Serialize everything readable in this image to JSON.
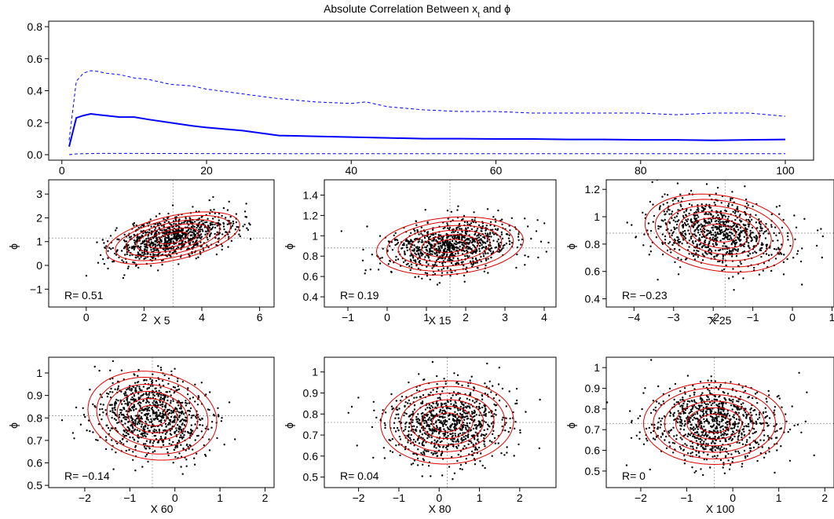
{
  "colors": {
    "mean_line": "#0000ff",
    "band_line": "#0000ff",
    "points": "#000000",
    "contours": "#e00000",
    "refline": "#9a9a9a",
    "frame": "#000000"
  },
  "chart_data": [
    {
      "id": "top",
      "type": "line",
      "title": "Absolute Correlation Between x",
      "title_sub": "t",
      "title_tail": " and ϕ",
      "xlim": [
        1,
        100
      ],
      "ylim": [
        0,
        0.8
      ],
      "xticks": [
        0,
        20,
        40,
        60,
        80,
        100
      ],
      "yticks": [
        0.0,
        0.2,
        0.4,
        0.6,
        0.8
      ],
      "ytick_labels": [
        "0.0",
        "0.2",
        "0.4",
        "0.6",
        "0.8"
      ],
      "series": [
        {
          "style": "dashed",
          "x": [
            1,
            2,
            3,
            4,
            5,
            6,
            8,
            10,
            12,
            15,
            18,
            20,
            25,
            30,
            35,
            40,
            42,
            45,
            50,
            55,
            60,
            65,
            70,
            75,
            80,
            85,
            90,
            95,
            100
          ],
          "y": [
            0.09,
            0.46,
            0.51,
            0.525,
            0.52,
            0.51,
            0.5,
            0.48,
            0.47,
            0.44,
            0.43,
            0.41,
            0.38,
            0.35,
            0.33,
            0.32,
            0.33,
            0.3,
            0.28,
            0.27,
            0.27,
            0.26,
            0.26,
            0.26,
            0.26,
            0.25,
            0.26,
            0.26,
            0.24
          ]
        },
        {
          "style": "solid",
          "x": [
            1,
            2,
            3,
            4,
            5,
            6,
            8,
            10,
            12,
            15,
            18,
            20,
            25,
            30,
            35,
            40,
            45,
            50,
            55,
            60,
            65,
            70,
            75,
            80,
            85,
            90,
            95,
            100
          ],
          "y": [
            0.05,
            0.23,
            0.245,
            0.255,
            0.25,
            0.245,
            0.235,
            0.235,
            0.22,
            0.2,
            0.18,
            0.17,
            0.15,
            0.12,
            0.115,
            0.11,
            0.105,
            0.1,
            0.1,
            0.098,
            0.098,
            0.095,
            0.095,
            0.093,
            0.093,
            0.09,
            0.093,
            0.095
          ]
        },
        {
          "style": "dashed",
          "x": [
            1,
            2,
            5,
            10,
            20,
            40,
            60,
            80,
            100
          ],
          "y": [
            0.0,
            0.005,
            0.008,
            0.008,
            0.007,
            0.006,
            0.006,
            0.006,
            0.006
          ]
        }
      ]
    },
    {
      "id": "x5",
      "type": "scatter",
      "xlabel": "X 5",
      "ylabel": "ϕ",
      "annotation": "R= 0.51",
      "xlim": [
        -1.3,
        6.5
      ],
      "ylim": [
        -1.75,
        3.6
      ],
      "xticks": [
        0,
        2,
        4,
        6
      ],
      "yticks": [
        -1,
        0,
        1,
        2,
        3
      ],
      "center": [
        3.0,
        1.15
      ],
      "refline": [
        3.0,
        1.15
      ],
      "sd": [
        1.05,
        0.5
      ],
      "r": 0.51
    },
    {
      "id": "x15",
      "type": "scatter",
      "xlabel": "X 15",
      "ylabel": "ϕ",
      "annotation": "R= 0.19",
      "xlim": [
        -1.6,
        4.3
      ],
      "ylim": [
        0.3,
        1.55
      ],
      "xticks": [
        -1,
        0,
        1,
        2,
        3,
        4
      ],
      "yticks": [
        0.4,
        0.6,
        0.8,
        1.0,
        1.2,
        1.4
      ],
      "center": [
        1.6,
        0.9
      ],
      "refline": [
        1.6,
        0.88
      ],
      "sd": [
        0.85,
        0.13
      ],
      "r": 0.19
    },
    {
      "id": "x25",
      "type": "scatter",
      "xlabel": "X 25",
      "ylabel": "ϕ",
      "annotation": "R= −0.23",
      "xlim": [
        -4.7,
        1.05
      ],
      "ylim": [
        0.34,
        1.27
      ],
      "xticks": [
        -4,
        -3,
        -2,
        -1,
        0,
        1
      ],
      "yticks": [
        0.4,
        0.6,
        0.8,
        1.0,
        1.2
      ],
      "center": [
        -1.85,
        0.88
      ],
      "refline": [
        -1.7,
        0.88
      ],
      "sd": [
        0.85,
        0.13
      ],
      "r": -0.23
    },
    {
      "id": "x60",
      "type": "scatter",
      "xlabel": "X 60",
      "ylabel": "ϕ",
      "annotation": "R= −0.14",
      "xlim": [
        -2.8,
        2.2
      ],
      "ylim": [
        0.49,
        1.07
      ],
      "xticks": [
        -2,
        -1,
        0,
        1,
        2
      ],
      "yticks": [
        0.5,
        0.6,
        0.7,
        0.8,
        0.9,
        1.0
      ],
      "center": [
        -0.5,
        0.81
      ],
      "refline": [
        -0.5,
        0.81
      ],
      "sd": [
        0.65,
        0.09
      ],
      "r": -0.14
    },
    {
      "id": "x80",
      "type": "scatter",
      "xlabel": "X 80",
      "ylabel": "ϕ",
      "annotation": "R= 0.04",
      "xlim": [
        -2.85,
        2.9
      ],
      "ylim": [
        0.45,
        1.07
      ],
      "xticks": [
        -2,
        -1,
        0,
        1,
        2
      ],
      "yticks": [
        0.5,
        0.6,
        0.7,
        0.8,
        0.9,
        1.0
      ],
      "center": [
        0.2,
        0.76
      ],
      "refline": [
        0.2,
        0.76
      ],
      "sd": [
        0.75,
        0.09
      ],
      "r": 0.04
    },
    {
      "id": "x100",
      "type": "scatter",
      "xlabel": "X 100",
      "ylabel": "ϕ",
      "annotation": "R= 0",
      "xlim": [
        -2.75,
        2.2
      ],
      "ylim": [
        0.42,
        1.05
      ],
      "xticks": [
        -2,
        -1,
        0,
        1,
        2
      ],
      "yticks": [
        0.5,
        0.6,
        0.7,
        0.8,
        0.9,
        1.0
      ],
      "center": [
        -0.4,
        0.73
      ],
      "refline": [
        -0.4,
        0.73
      ],
      "sd": [
        0.7,
        0.09
      ],
      "r": 0
    }
  ]
}
